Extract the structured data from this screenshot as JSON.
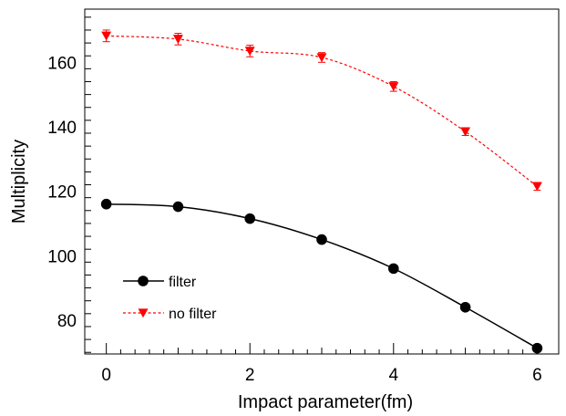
{
  "chart_data": {
    "type": "line",
    "xlabel": "Impact parameter(fm)",
    "ylabel": "Multiplicity",
    "xlim": [
      -0.3,
      6.3
    ],
    "ylim": [
      69.5,
      176.5
    ],
    "x_ticks": [
      "0",
      "2",
      "4",
      "6"
    ],
    "y_ticks": [
      "80",
      "100",
      "120",
      "140",
      "160"
    ],
    "grid": false,
    "legend_position": "bottom-left",
    "series": [
      {
        "name": "filter",
        "color": "#000000",
        "marker": "circle",
        "line": "solid",
        "x": [
          0,
          1,
          2,
          3,
          4,
          5,
          6
        ],
        "y": [
          116,
          115.2,
          111.5,
          105,
          96,
          84,
          71.3
        ]
      },
      {
        "name": "no filter",
        "color": "#ff0000",
        "marker": "triangle-down",
        "line": "dashed",
        "x": [
          0,
          1,
          2,
          3,
          4,
          5,
          6
        ],
        "y": [
          168.2,
          167.2,
          163.5,
          161.5,
          152.5,
          138.5,
          121.5
        ],
        "error": [
          1.8,
          1.8,
          1.8,
          1.5,
          1.5,
          1.2,
          1.2
        ]
      }
    ]
  }
}
